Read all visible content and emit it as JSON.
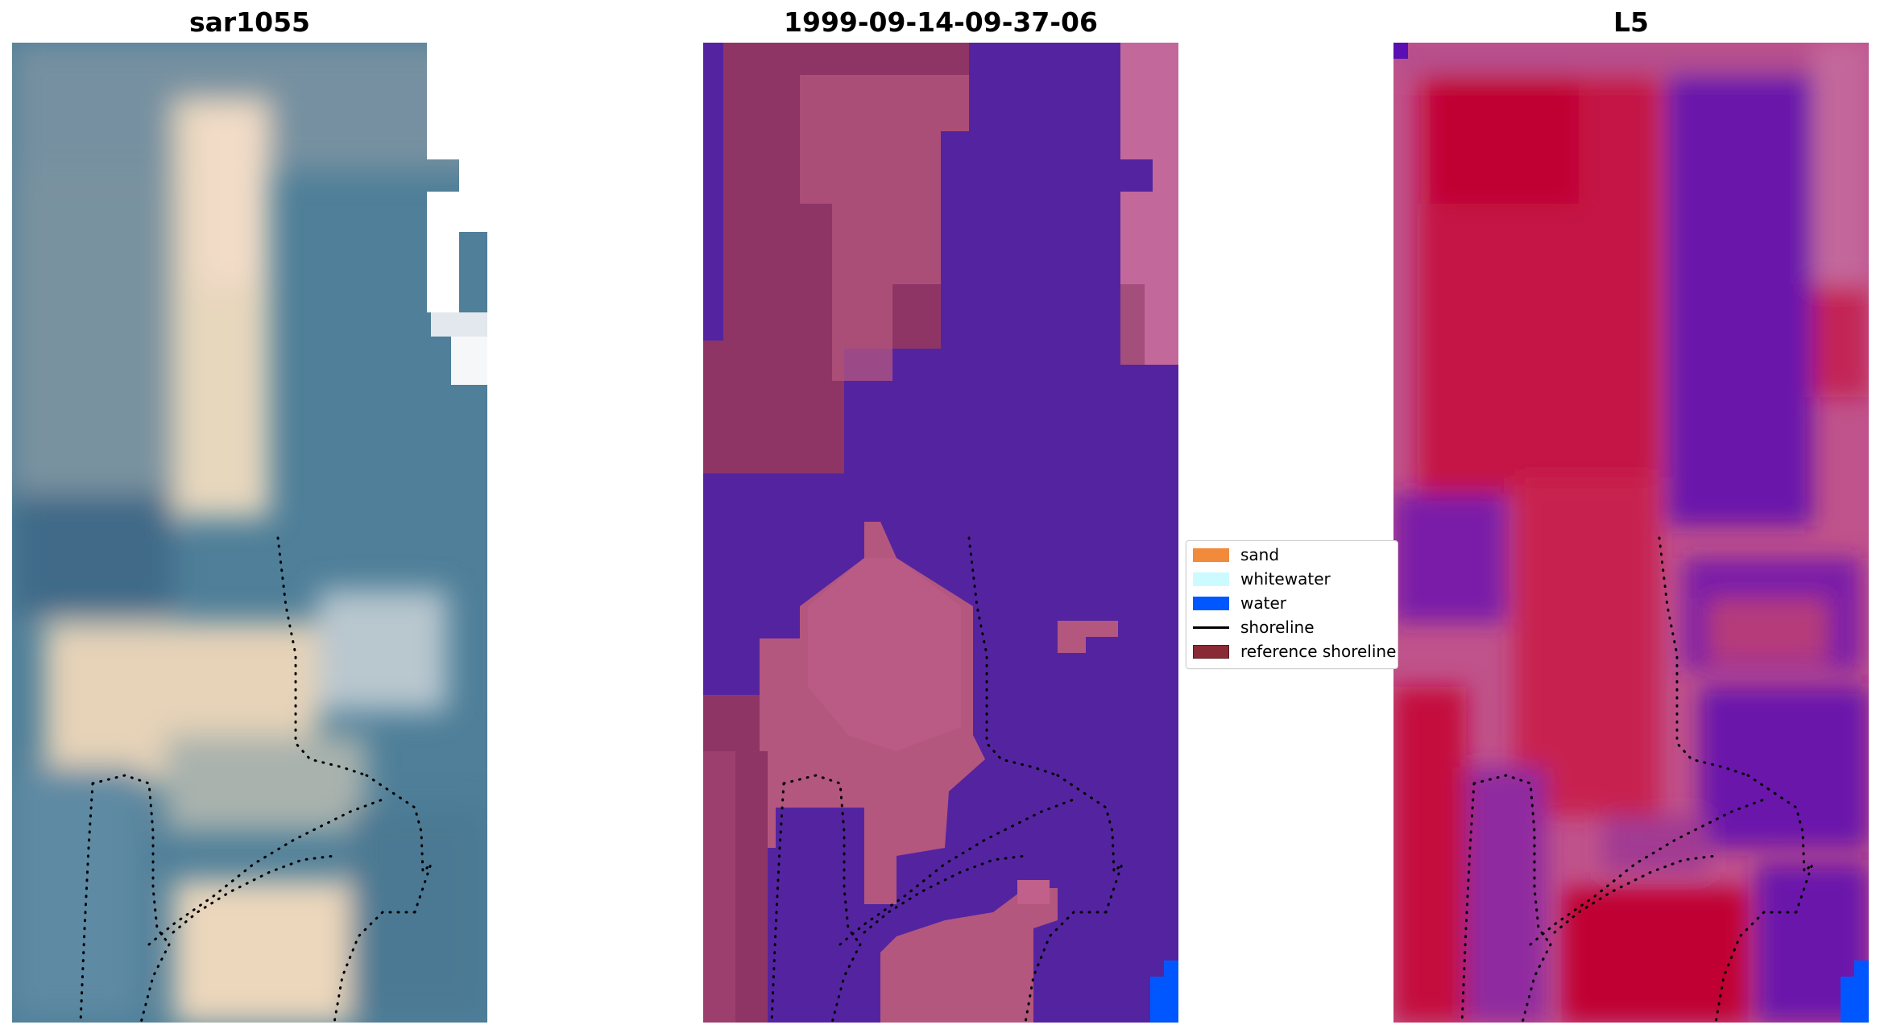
{
  "panels": [
    {
      "title": "sar1055"
    },
    {
      "title": "1999-09-14-09-37-06"
    },
    {
      "title": "L5"
    }
  ],
  "legend": {
    "items": [
      {
        "label": "sand",
        "color": "#f28a3c",
        "kind": "patch"
      },
      {
        "label": "whitewater",
        "color": "#ccfbff",
        "kind": "patch"
      },
      {
        "label": "water",
        "color": "#0057ff",
        "kind": "patch"
      },
      {
        "label": "shoreline",
        "color": "#000000",
        "kind": "line"
      },
      {
        "label": "reference shoreline",
        "color": "#8a2a35",
        "kind": "patch"
      }
    ]
  },
  "colors": {
    "rgb_water": "#4f7f99",
    "rgb_sand": "#ecdcc0",
    "rgb_cloud": "#f4f6f8",
    "class_background": "#5424a0",
    "class_land": "#b3577f",
    "class_land_dark": "#8e3566",
    "class_water_bright": "#0057ff",
    "index_red": "#c4103e",
    "index_pink": "#c0538b",
    "index_purple": "#6a14ab",
    "shoreline": "#000000"
  }
}
